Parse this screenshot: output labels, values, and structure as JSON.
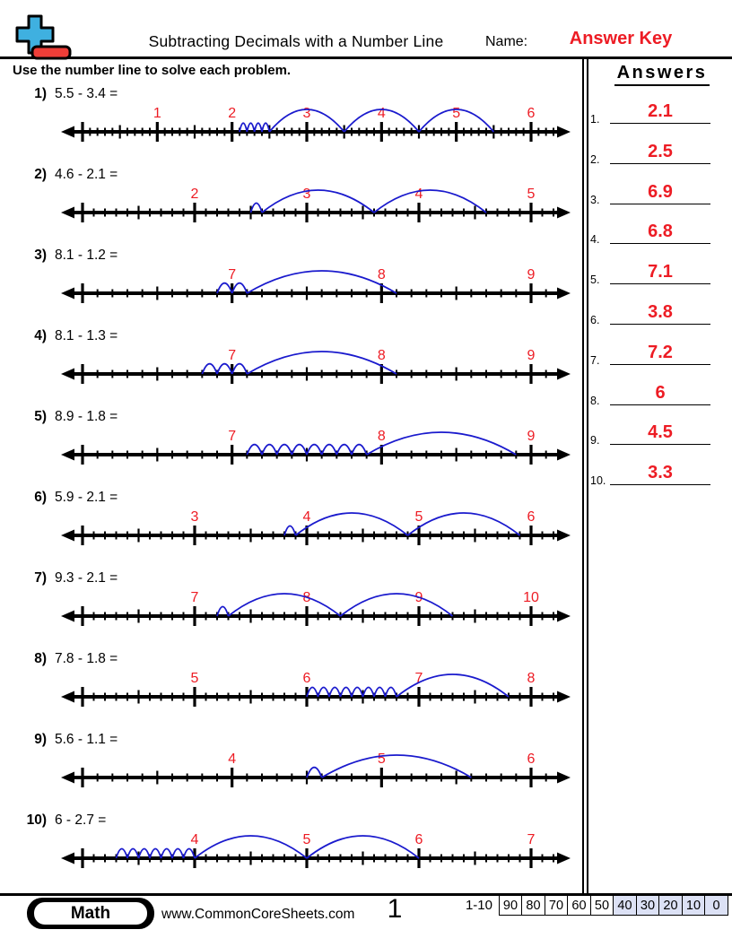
{
  "header": {
    "title": "Subtracting Decimals with a Number Line",
    "name_label": "Name:",
    "answer_key": "Answer Key"
  },
  "instructions": "Use the number line to solve each problem.",
  "answers": {
    "title": "Answers",
    "items": [
      {
        "n": "1.",
        "v": "2.1"
      },
      {
        "n": "2.",
        "v": "2.5"
      },
      {
        "n": "3.",
        "v": "6.9"
      },
      {
        "n": "4.",
        "v": "6.8"
      },
      {
        "n": "5.",
        "v": "7.1"
      },
      {
        "n": "6.",
        "v": "3.8"
      },
      {
        "n": "7.",
        "v": "7.2"
      },
      {
        "n": "8.",
        "v": "6"
      },
      {
        "n": "9.",
        "v": "4.5"
      },
      {
        "n": "10.",
        "v": "3.3"
      }
    ]
  },
  "problems": [
    {
      "n": "1)",
      "eq": "5.5 - 3.4 =",
      "labels": [
        "1",
        "2",
        "3",
        "4",
        "5",
        "6"
      ],
      "arcs": [
        [
          2.1,
          2.2
        ],
        [
          2.2,
          2.3
        ],
        [
          2.3,
          2.4
        ],
        [
          2.4,
          2.5
        ],
        [
          2.5,
          3.5
        ],
        [
          3.5,
          4.5
        ],
        [
          4.5,
          5.5
        ]
      ]
    },
    {
      "n": "2)",
      "eq": "4.6 - 2.1 =",
      "labels": [
        "2",
        "3",
        "4",
        "5"
      ],
      "arcs": [
        [
          2.5,
          2.6
        ],
        [
          2.6,
          3.6
        ],
        [
          3.6,
          4.6
        ]
      ]
    },
    {
      "n": "3)",
      "eq": "8.1 - 1.2 =",
      "labels": [
        "7",
        "8",
        "9"
      ],
      "arcs": [
        [
          6.9,
          7.0
        ],
        [
          7.0,
          7.1
        ],
        [
          7.1,
          8.1
        ]
      ]
    },
    {
      "n": "4)",
      "eq": "8.1 - 1.3 =",
      "labels": [
        "7",
        "8",
        "9"
      ],
      "arcs": [
        [
          6.8,
          6.9
        ],
        [
          6.9,
          7.0
        ],
        [
          7.0,
          7.1
        ],
        [
          7.1,
          8.1
        ]
      ]
    },
    {
      "n": "5)",
      "eq": "8.9 - 1.8 =",
      "labels": [
        "7",
        "8",
        "9"
      ],
      "arcs": [
        [
          7.1,
          7.2
        ],
        [
          7.2,
          7.3
        ],
        [
          7.3,
          7.4
        ],
        [
          7.4,
          7.5
        ],
        [
          7.5,
          7.6
        ],
        [
          7.6,
          7.7
        ],
        [
          7.7,
          7.8
        ],
        [
          7.8,
          7.9
        ],
        [
          7.9,
          8.9
        ]
      ]
    },
    {
      "n": "6)",
      "eq": "5.9 - 2.1 =",
      "labels": [
        "3",
        "4",
        "5",
        "6"
      ],
      "arcs": [
        [
          3.8,
          3.9
        ],
        [
          3.9,
          4.9
        ],
        [
          4.9,
          5.9
        ]
      ]
    },
    {
      "n": "7)",
      "eq": "9.3 - 2.1 =",
      "labels": [
        "7",
        "8",
        "9",
        "10"
      ],
      "arcs": [
        [
          7.2,
          7.3
        ],
        [
          7.3,
          8.3
        ],
        [
          8.3,
          9.3
        ]
      ]
    },
    {
      "n": "8)",
      "eq": "7.8 - 1.8 =",
      "labels": [
        "5",
        "6",
        "7",
        "8"
      ],
      "arcs": [
        [
          6.0,
          6.1
        ],
        [
          6.1,
          6.2
        ],
        [
          6.2,
          6.3
        ],
        [
          6.3,
          6.4
        ],
        [
          6.4,
          6.5
        ],
        [
          6.5,
          6.6
        ],
        [
          6.6,
          6.7
        ],
        [
          6.7,
          6.8
        ],
        [
          6.8,
          7.8
        ]
      ]
    },
    {
      "n": "9)",
      "eq": "5.6 - 1.1 =",
      "labels": [
        "4",
        "5",
        "6"
      ],
      "arcs": [
        [
          4.5,
          4.6
        ],
        [
          4.6,
          5.6
        ]
      ]
    },
    {
      "n": "10)",
      "eq": "6 - 2.7 =",
      "labels": [
        "4",
        "5",
        "6",
        "7"
      ],
      "arcs": [
        [
          3.3,
          3.4
        ],
        [
          3.4,
          3.5
        ],
        [
          3.5,
          3.6
        ],
        [
          3.6,
          3.7
        ],
        [
          3.7,
          3.8
        ],
        [
          3.8,
          3.9
        ],
        [
          3.9,
          4.0
        ],
        [
          4.0,
          5.0
        ],
        [
          5.0,
          6.0
        ]
      ]
    }
  ],
  "footer": {
    "subject": "Math",
    "site": "www.CommonCoreSheets.com",
    "page": "1",
    "score_label": "1-10",
    "scores": [
      "90",
      "80",
      "70",
      "60",
      "50",
      "40",
      "30",
      "20",
      "10",
      "0"
    ],
    "shaded_from_index": 5
  },
  "colors": {
    "red": "#ed1c24",
    "arc_blue": "#1a1acd",
    "logo_blue": "#3fb0e0",
    "logo_red": "#ee3e38",
    "score_shade": "#dce1f5"
  }
}
